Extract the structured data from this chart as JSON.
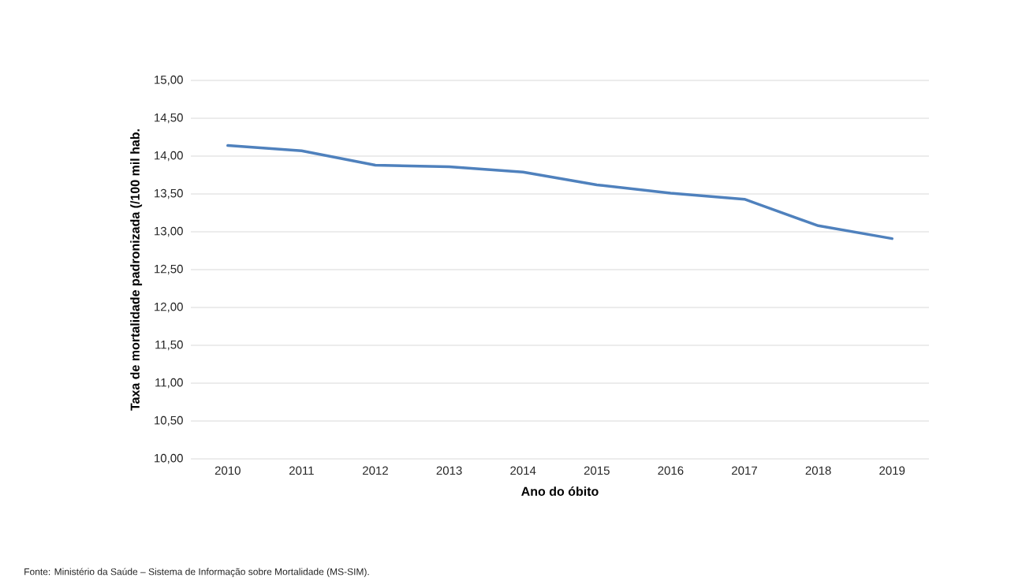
{
  "chart_data": {
    "type": "line",
    "categories": [
      "2010",
      "2011",
      "2012",
      "2013",
      "2014",
      "2015",
      "2016",
      "2017",
      "2018",
      "2019"
    ],
    "series": [
      {
        "color": "#4f81bd",
        "values": [
          14.14,
          14.07,
          13.88,
          13.86,
          13.79,
          13.62,
          13.51,
          13.43,
          13.08,
          12.91
        ]
      }
    ],
    "xlabel": "Ano do óbito",
    "ylabel": "Taxa de mortalidade padronizada (/100 mil hab.",
    "ylim": [
      10,
      15
    ],
    "yticks": [
      {
        "value": 10,
        "label": "10,00"
      },
      {
        "value": 10.5,
        "label": "10,50"
      },
      {
        "value": 11,
        "label": "11,00"
      },
      {
        "value": 11.5,
        "label": "11,50"
      },
      {
        "value": 12,
        "label": "12,00"
      },
      {
        "value": 12.5,
        "label": "12,50"
      },
      {
        "value": 13,
        "label": "13,00"
      },
      {
        "value": 13.5,
        "label": "13,50"
      },
      {
        "value": 14,
        "label": "14,00"
      },
      {
        "value": 14.5,
        "label": "14,50"
      },
      {
        "value": 15,
        "label": "15,00"
      }
    ],
    "grid": "y",
    "marker": "none",
    "line_style": "solid",
    "annotations": [
      "Fonte: Ministério da Saúde – Sistema de Informação sobre Mortalidade (MS-SIM)."
    ]
  }
}
